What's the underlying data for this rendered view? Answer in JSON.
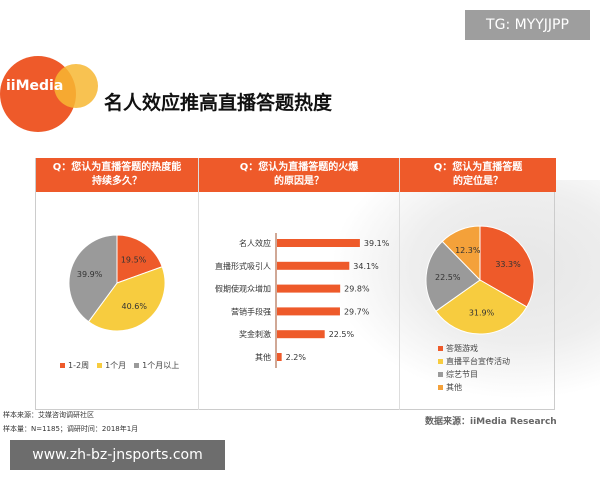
{
  "watermark": "TG: MYYJJPP",
  "url": "www.zh-bz-jnsports.com",
  "logo": {
    "text": "iiMedia"
  },
  "title": "名人效应推高直播答题热度",
  "colors": {
    "orange": "#ee5a2a",
    "yellow": "#f7cc3f",
    "gray": "#9a9a9a",
    "light_orange": "#f4a13a"
  },
  "chart_data": [
    {
      "type": "pie",
      "title": "Q：您认为直播答题的热度能持续多久？",
      "legend_position": "bottom",
      "slices": [
        {
          "name": "1-2周",
          "value": 19.5,
          "label": "19.5%",
          "color": "#ee5a2a"
        },
        {
          "name": "1个月",
          "value": 40.6,
          "label": "40.6%",
          "color": "#f7cc3f"
        },
        {
          "name": "1个月以上",
          "value": 39.9,
          "label": "39.9%",
          "color": "#9a9a9a"
        }
      ]
    },
    {
      "type": "bar",
      "orientation": "horizontal",
      "title": "Q：您认为直播答题的火爆的原因是？",
      "categories": [
        "名人效应",
        "直播形式吸引人",
        "假期使观众增加",
        "营销手段强",
        "奖金刺激",
        "其他"
      ],
      "values": [
        39.1,
        34.1,
        29.8,
        29.7,
        22.5,
        2.2
      ],
      "labels": [
        "39.1%",
        "34.1%",
        "29.8%",
        "29.7%",
        "22.5%",
        "2.2%"
      ],
      "color": "#ee5a2a"
    },
    {
      "type": "pie",
      "title": "Q：您认为直播答题的定位是？",
      "legend_position": "bottom",
      "slices": [
        {
          "name": "答题游戏",
          "value": 33.3,
          "label": "33.3%",
          "color": "#ee5a2a"
        },
        {
          "name": "直播平台宣传活动",
          "value": 31.9,
          "label": "31.9%",
          "color": "#f7cc3f"
        },
        {
          "name": "综艺节目",
          "value": 22.5,
          "label": "22.5%",
          "color": "#9a9a9a"
        },
        {
          "name": "其他",
          "value": 12.3,
          "label": "12.3%",
          "color": "#f4a13a"
        }
      ]
    }
  ],
  "headers": [
    "Q：您认为直播答题的热度能",
    "持续多久？",
    "Q：您认为直播答题的火爆",
    "的原因是？",
    "Q：您认为直播答题",
    "的定位是？"
  ],
  "notes": {
    "sample_source": "样本来源：艾媒咨询调研社区",
    "sample_size": "样本量：N=1185；调研时间：2018年1月",
    "data_source": "数据来源：iiMedia Research"
  }
}
